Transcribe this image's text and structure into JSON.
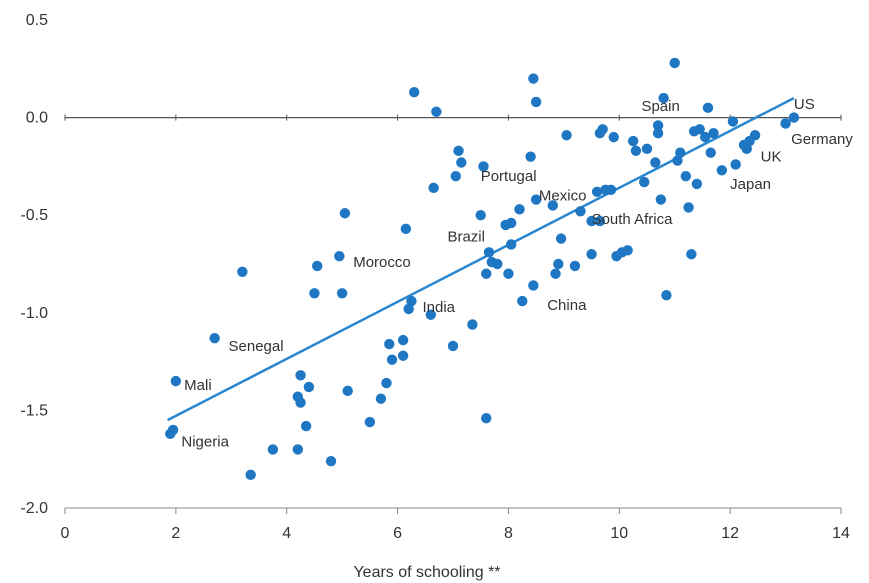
{
  "chart_data": {
    "type": "scatter",
    "xlabel": "Years of schooling **",
    "ylabel": "",
    "xlim": [
      0,
      14
    ],
    "ylim": [
      -2.0,
      0.5
    ],
    "x_ticks": [
      "0",
      "2",
      "4",
      "6",
      "8",
      "10",
      "12",
      "14"
    ],
    "y_ticks": [
      "0.5",
      "0.0",
      "-0.5",
      "-1.0",
      "-1.5",
      "-2.0"
    ],
    "grid": false,
    "colors": {
      "points": "#1f77c4",
      "trend": "#2a86cf",
      "zero_line": "#555555",
      "axis": "#888888"
    },
    "trend_line": {
      "x": [
        1.85,
        13.15
      ],
      "y": [
        -1.55,
        0.1
      ]
    },
    "points": [
      {
        "x": 1.9,
        "y": -1.62
      },
      {
        "x": 1.95,
        "y": -1.6
      },
      {
        "x": 2.0,
        "y": -1.35
      },
      {
        "x": 2.7,
        "y": -1.13
      },
      {
        "x": 3.2,
        "y": -0.79
      },
      {
        "x": 3.35,
        "y": -1.83
      },
      {
        "x": 3.75,
        "y": -1.7
      },
      {
        "x": 4.2,
        "y": -1.7
      },
      {
        "x": 4.2,
        "y": -1.43
      },
      {
        "x": 4.25,
        "y": -1.46
      },
      {
        "x": 4.25,
        "y": -1.32
      },
      {
        "x": 4.35,
        "y": -1.58
      },
      {
        "x": 4.4,
        "y": -1.38
      },
      {
        "x": 4.5,
        "y": -0.9
      },
      {
        "x": 4.55,
        "y": -0.76
      },
      {
        "x": 4.8,
        "y": -1.76
      },
      {
        "x": 4.95,
        "y": -0.71
      },
      {
        "x": 5.0,
        "y": -0.9
      },
      {
        "x": 5.05,
        "y": -0.49
      },
      {
        "x": 5.1,
        "y": -1.4
      },
      {
        "x": 5.5,
        "y": -1.56
      },
      {
        "x": 5.7,
        "y": -1.44
      },
      {
        "x": 5.8,
        "y": -1.36
      },
      {
        "x": 5.85,
        "y": -1.16
      },
      {
        "x": 5.9,
        "y": -1.24
      },
      {
        "x": 6.1,
        "y": -1.22
      },
      {
        "x": 6.1,
        "y": -1.14
      },
      {
        "x": 6.15,
        "y": -0.57
      },
      {
        "x": 6.2,
        "y": -0.98
      },
      {
        "x": 6.25,
        "y": -0.94
      },
      {
        "x": 6.3,
        "y": 0.13
      },
      {
        "x": 6.6,
        "y": -1.01
      },
      {
        "x": 6.65,
        "y": -0.36
      },
      {
        "x": 6.7,
        "y": 0.03
      },
      {
        "x": 7.0,
        "y": -1.17
      },
      {
        "x": 7.05,
        "y": -0.3
      },
      {
        "x": 7.1,
        "y": -0.17
      },
      {
        "x": 7.15,
        "y": -0.23
      },
      {
        "x": 7.35,
        "y": -1.06
      },
      {
        "x": 7.5,
        "y": -0.5
      },
      {
        "x": 7.55,
        "y": -0.25
      },
      {
        "x": 7.6,
        "y": -1.54
      },
      {
        "x": 7.6,
        "y": -0.8
      },
      {
        "x": 7.65,
        "y": -0.69
      },
      {
        "x": 7.7,
        "y": -0.74
      },
      {
        "x": 7.8,
        "y": -0.75
      },
      {
        "x": 7.95,
        "y": -0.55
      },
      {
        "x": 8.0,
        "y": -0.8
      },
      {
        "x": 8.05,
        "y": -0.65
      },
      {
        "x": 8.05,
        "y": -0.54
      },
      {
        "x": 8.2,
        "y": -0.47
      },
      {
        "x": 8.25,
        "y": -0.94
      },
      {
        "x": 8.4,
        "y": -0.2
      },
      {
        "x": 8.45,
        "y": 0.2
      },
      {
        "x": 8.45,
        "y": -0.86
      },
      {
        "x": 8.5,
        "y": 0.08
      },
      {
        "x": 8.5,
        "y": -0.42
      },
      {
        "x": 8.8,
        "y": -0.45
      },
      {
        "x": 8.85,
        "y": -0.8
      },
      {
        "x": 8.9,
        "y": -0.75
      },
      {
        "x": 8.95,
        "y": -0.62
      },
      {
        "x": 9.05,
        "y": -0.09
      },
      {
        "x": 9.2,
        "y": -0.76
      },
      {
        "x": 9.3,
        "y": -0.48
      },
      {
        "x": 9.5,
        "y": -0.53
      },
      {
        "x": 9.5,
        "y": -0.7
      },
      {
        "x": 9.6,
        "y": -0.38
      },
      {
        "x": 9.65,
        "y": -0.53
      },
      {
        "x": 9.65,
        "y": -0.08
      },
      {
        "x": 9.7,
        "y": -0.06
      },
      {
        "x": 9.75,
        "y": -0.37
      },
      {
        "x": 9.85,
        "y": -0.37
      },
      {
        "x": 9.9,
        "y": -0.1
      },
      {
        "x": 9.95,
        "y": -0.71
      },
      {
        "x": 10.05,
        "y": -0.69
      },
      {
        "x": 10.15,
        "y": -0.68
      },
      {
        "x": 10.25,
        "y": -0.12
      },
      {
        "x": 10.3,
        "y": -0.17
      },
      {
        "x": 10.45,
        "y": -0.33
      },
      {
        "x": 10.5,
        "y": -0.16
      },
      {
        "x": 10.65,
        "y": -0.23
      },
      {
        "x": 10.7,
        "y": -0.08
      },
      {
        "x": 10.7,
        "y": -0.04
      },
      {
        "x": 10.75,
        "y": -0.42
      },
      {
        "x": 10.8,
        "y": 0.1
      },
      {
        "x": 10.85,
        "y": -0.91
      },
      {
        "x": 11.0,
        "y": 0.28
      },
      {
        "x": 11.05,
        "y": -0.22
      },
      {
        "x": 11.1,
        "y": -0.18
      },
      {
        "x": 11.2,
        "y": -0.3
      },
      {
        "x": 11.25,
        "y": -0.46
      },
      {
        "x": 11.3,
        "y": -0.7
      },
      {
        "x": 11.35,
        "y": -0.07
      },
      {
        "x": 11.4,
        "y": -0.34
      },
      {
        "x": 11.45,
        "y": -0.06
      },
      {
        "x": 11.55,
        "y": -0.1
      },
      {
        "x": 11.6,
        "y": 0.05
      },
      {
        "x": 11.65,
        "y": -0.18
      },
      {
        "x": 11.7,
        "y": -0.08
      },
      {
        "x": 11.85,
        "y": -0.27
      },
      {
        "x": 12.05,
        "y": -0.02
      },
      {
        "x": 12.1,
        "y": -0.24
      },
      {
        "x": 12.25,
        "y": -0.14
      },
      {
        "x": 12.3,
        "y": -0.16
      },
      {
        "x": 12.35,
        "y": -0.12
      },
      {
        "x": 12.45,
        "y": -0.09
      },
      {
        "x": 13.0,
        "y": -0.03
      },
      {
        "x": 13.15,
        "y": 0.0
      }
    ],
    "labels": [
      {
        "text": "US",
        "x": 13.15,
        "y": 0.07,
        "anchor": "start"
      },
      {
        "text": "Spain",
        "x": 10.4,
        "y": 0.06,
        "anchor": "start"
      },
      {
        "text": "Germany",
        "x": 13.1,
        "y": -0.11,
        "anchor": "start"
      },
      {
        "text": "UK",
        "x": 12.55,
        "y": -0.2,
        "anchor": "start"
      },
      {
        "text": "Japan",
        "x": 12.0,
        "y": -0.34,
        "anchor": "start"
      },
      {
        "text": "Portugal",
        "x": 7.5,
        "y": -0.3,
        "anchor": "start"
      },
      {
        "text": "Mexico",
        "x": 8.55,
        "y": -0.4,
        "anchor": "start"
      },
      {
        "text": "South Africa",
        "x": 9.5,
        "y": -0.52,
        "anchor": "start"
      },
      {
        "text": "Brazil",
        "x": 6.9,
        "y": -0.61,
        "anchor": "start"
      },
      {
        "text": "Morocco",
        "x": 5.2,
        "y": -0.74,
        "anchor": "start"
      },
      {
        "text": "China",
        "x": 8.7,
        "y": -0.96,
        "anchor": "start"
      },
      {
        "text": "India",
        "x": 6.45,
        "y": -0.97,
        "anchor": "start"
      },
      {
        "text": "Senegal",
        "x": 2.95,
        "y": -1.17,
        "anchor": "start"
      },
      {
        "text": "Mali",
        "x": 2.15,
        "y": -1.37,
        "anchor": "start"
      },
      {
        "text": "Nigeria",
        "x": 2.1,
        "y": -1.66,
        "anchor": "start"
      }
    ]
  }
}
